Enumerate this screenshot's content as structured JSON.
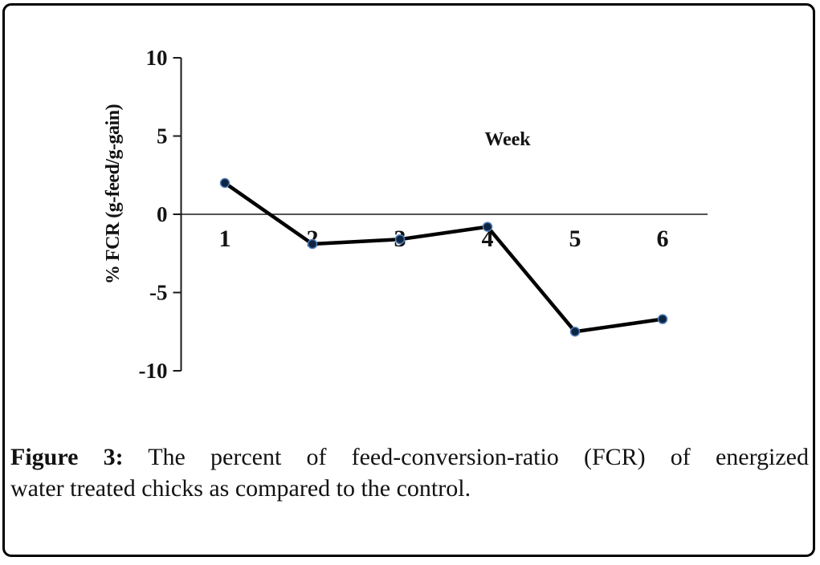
{
  "figure": {
    "caption_prefix": "Figure 3:",
    "caption_line1": "The percent of feed-conversion-ratio (FCR) of energized",
    "caption_line2": "water treated chicks as compared to the control."
  },
  "chart_data": {
    "type": "line",
    "x": [
      1,
      2,
      3,
      4,
      5,
      6
    ],
    "values": [
      2.0,
      -1.9,
      -1.6,
      -0.8,
      -7.5,
      -6.7
    ],
    "xtick_labels": [
      "1",
      "2",
      "3",
      "4",
      "5",
      "6"
    ],
    "yticks": [
      10,
      5,
      0,
      -5,
      -10
    ],
    "ylim": [
      -10,
      10
    ],
    "xlabel": "Week",
    "ylabel": "% FCR (g-feed/g-gain)",
    "grid": false,
    "legend": "none",
    "colors": {
      "line": "#000000",
      "marker_fill": "#0f2440",
      "marker_stroke": "#4f81bd",
      "axis": "#1a1a1a",
      "text": "#131313",
      "frame_border": "#000000",
      "background": "#ffffff"
    }
  }
}
